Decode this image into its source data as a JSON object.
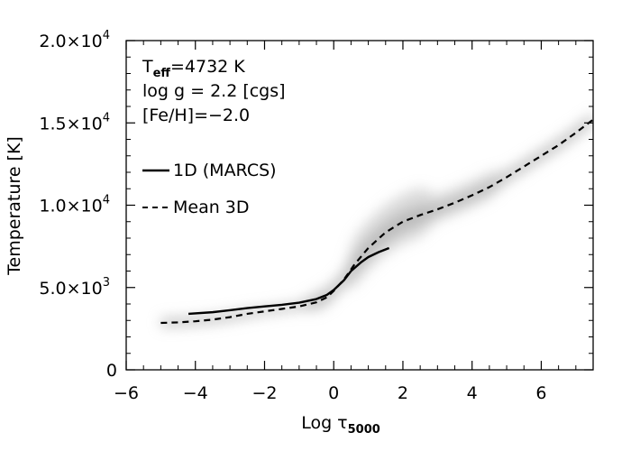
{
  "chart_data": {
    "type": "line",
    "xlabel": "Log τ",
    "xlabel_sub": "5000",
    "ylabel": "Temperature [K]",
    "xlim": [
      -6,
      7.5
    ],
    "ylim": [
      0,
      20000
    ],
    "x_ticks": [
      -6,
      -4,
      -2,
      0,
      2,
      4,
      6
    ],
    "x_tick_labels": [
      "−6",
      "−4",
      "−2",
      "0",
      "2",
      "4",
      "6"
    ],
    "y_ticks": [
      {
        "value": 0,
        "label": "0",
        "mant": "",
        "exp": ""
      },
      {
        "value": 5000,
        "label": "",
        "mant": "5.0×10",
        "exp": "3"
      },
      {
        "value": 10000,
        "label": "",
        "mant": "1.0×10",
        "exp": "4"
      },
      {
        "value": 15000,
        "label": "",
        "mant": "1.5×10",
        "exp": "4"
      },
      {
        "value": 20000,
        "label": "",
        "mant": "2.0×10",
        "exp": "4"
      }
    ],
    "annotations": {
      "teff_prefix": "T",
      "teff_sub": "eff",
      "teff_value": "=4732 K",
      "logg": "log g = 2.2 [cgs]",
      "feh": "[Fe/H]=−2.0"
    },
    "legend": [
      {
        "label": "1D (MARCS)",
        "style": "solid"
      },
      {
        "label": "Mean 3D",
        "style": "dashed"
      }
    ],
    "series": [
      {
        "name": "1D (MARCS)",
        "style": "solid",
        "x": [
          -4.2,
          -3.5,
          -3.0,
          -2.5,
          -2.0,
          -1.5,
          -1.0,
          -0.5,
          -0.2,
          0.0,
          0.3,
          0.5,
          0.8,
          1.0,
          1.3,
          1.6
        ],
        "y": [
          3400,
          3500,
          3620,
          3750,
          3850,
          3950,
          4080,
          4300,
          4550,
          4850,
          5450,
          6000,
          6550,
          6850,
          7150,
          7400
        ]
      },
      {
        "name": "Mean 3D",
        "style": "dashed",
        "x": [
          -5.0,
          -4.5,
          -4.0,
          -3.5,
          -3.0,
          -2.5,
          -2.0,
          -1.5,
          -1.0,
          -0.5,
          -0.2,
          0.0,
          0.3,
          0.6,
          1.0,
          1.5,
          2.0,
          2.5,
          3.0,
          3.5,
          4.0,
          4.5,
          5.0,
          5.5,
          6.0,
          6.5,
          7.0,
          7.5
        ],
        "y": [
          2850,
          2880,
          2950,
          3050,
          3200,
          3400,
          3550,
          3700,
          3850,
          4100,
          4400,
          4800,
          5500,
          6400,
          7400,
          8350,
          9000,
          9400,
          9750,
          10150,
          10600,
          11100,
          11700,
          12350,
          13000,
          13650,
          14400,
          15200
        ]
      }
    ],
    "background": {
      "type": "density",
      "color": "#bdbdbd",
      "description": "grey 3D temperature distribution"
    }
  }
}
